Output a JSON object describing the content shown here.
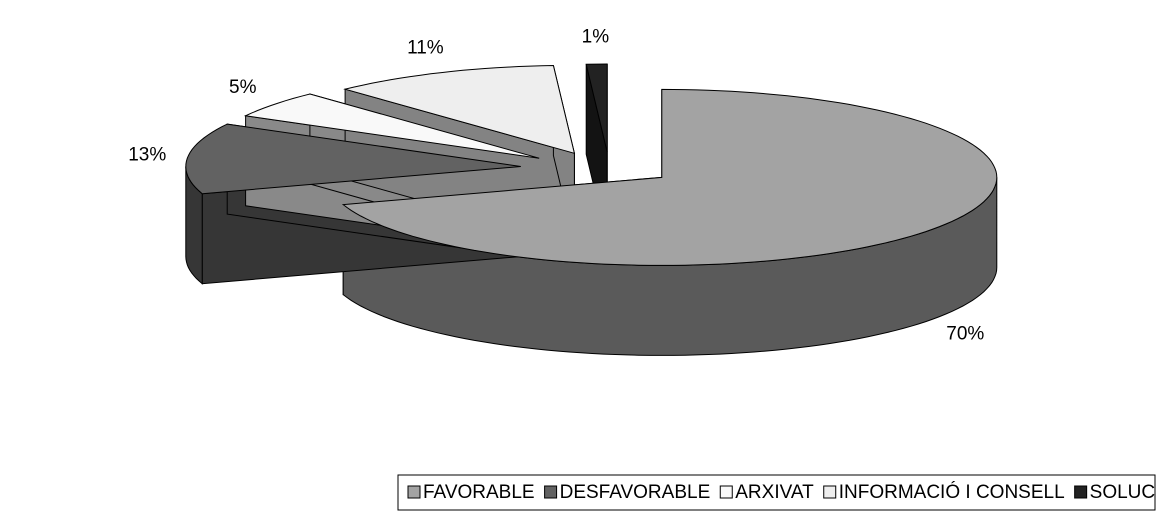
{
  "chart_data": {
    "type": "pie",
    "three_d": true,
    "exploded": true,
    "legend": "bottom",
    "categories": [
      "FAVORABLE",
      "DESFAVORABLE",
      "ARXIVAT",
      "INFORMACIÓ I CONSELL",
      "SOLUCIÓ DE CONSENS"
    ],
    "values": [
      70,
      13,
      5,
      11,
      1
    ],
    "value_labels": [
      "70%",
      "13%",
      "5%",
      "11%",
      "1%"
    ],
    "colors": [
      "#a3a3a3",
      "#626262",
      "#f9f9f9",
      "#eeeeee",
      "#222222"
    ]
  }
}
